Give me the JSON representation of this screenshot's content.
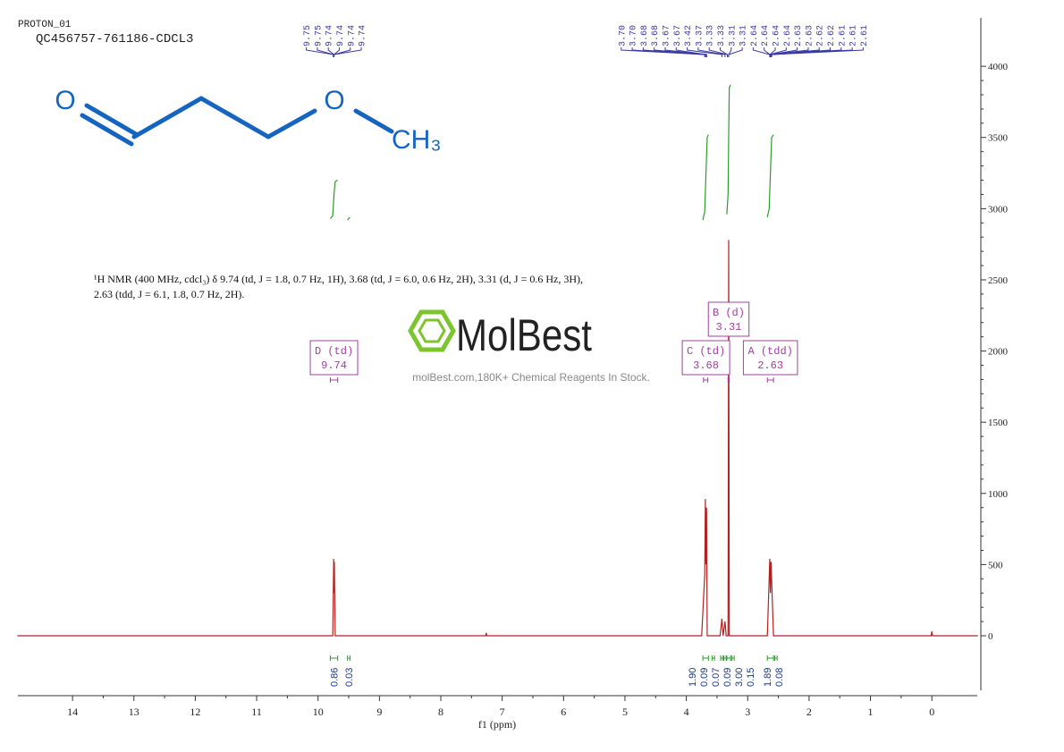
{
  "chart_data": {
    "type": "line",
    "title": "PROTON_01",
    "subtitle": "QC456757-761186-CDCL3",
    "xlabel": "f1 (ppm)",
    "xlim": [
      14.89,
      -0.74
    ],
    "xticks": [
      14,
      13,
      12,
      11,
      10,
      9,
      8,
      7,
      6,
      5,
      4,
      3,
      2,
      1,
      0
    ],
    "ylim": [
      -383,
      4340
    ],
    "yticks": [
      0,
      500,
      1000,
      1500,
      2000,
      2500,
      3000,
      3500,
      4000
    ],
    "spectrum": {
      "color": "#b22222",
      "x": [
        14.9,
        9.8,
        9.76,
        9.745,
        9.74,
        9.735,
        9.72,
        9.5,
        7.27,
        7.26,
        7.25,
        3.75,
        3.7,
        3.69,
        3.68,
        3.67,
        3.66,
        3.45,
        3.42,
        3.4,
        3.37,
        3.35,
        3.32,
        3.31,
        3.3,
        3.25,
        2.68,
        2.64,
        2.63,
        2.62,
        2.58,
        0.01,
        0,
        -0.01,
        -0.75
      ],
      "values": [
        0,
        0,
        0,
        540,
        300,
        520,
        0,
        0,
        0,
        20,
        0,
        0,
        430,
        960,
        500,
        900,
        0,
        0,
        120,
        0,
        100,
        0,
        0,
        2780,
        0,
        0,
        0,
        540,
        300,
        520,
        0,
        0,
        30,
        0,
        0
      ]
    },
    "integral_curves": {
      "color": "#2e9b2e",
      "segments": [
        {
          "x": [
            9.8,
            9.76,
            9.74,
            9.72,
            9.68
          ],
          "values": [
            2930,
            2950,
            3100,
            3190,
            3200
          ]
        },
        {
          "x": [
            9.52,
            9.48
          ],
          "values": [
            2920,
            2940
          ]
        },
        {
          "x": [
            3.73,
            3.7,
            3.68,
            3.66,
            3.64
          ],
          "values": [
            2920,
            2980,
            3250,
            3500,
            3520
          ]
        },
        {
          "x": [
            3.34,
            3.32,
            3.31,
            3.3,
            3.28
          ],
          "values": [
            2960,
            3100,
            3500,
            3850,
            3870
          ]
        },
        {
          "x": [
            2.68,
            2.65,
            2.63,
            2.61,
            2.58
          ],
          "values": [
            2940,
            3000,
            3250,
            3500,
            3520
          ]
        }
      ]
    },
    "peak_labels": {
      "color": "#3a3aa0",
      "peaks": [
        {
          "value": 9.75,
          "label": "9.75"
        },
        {
          "value": 9.75,
          "label": "9.75"
        },
        {
          "value": 9.74,
          "label": "9.74"
        },
        {
          "value": 9.74,
          "label": "9.74"
        },
        {
          "value": 9.74,
          "label": "9.74"
        },
        {
          "value": 9.74,
          "label": "9.74"
        },
        {
          "value": 3.7,
          "label": "3.70"
        },
        {
          "value": 3.7,
          "label": "3.70"
        },
        {
          "value": 3.68,
          "label": "3.68"
        },
        {
          "value": 3.68,
          "label": "3.68"
        },
        {
          "value": 3.67,
          "label": "3.67"
        },
        {
          "value": 3.67,
          "label": "3.67"
        },
        {
          "value": 3.42,
          "label": "3.42"
        },
        {
          "value": 3.37,
          "label": "3.37"
        },
        {
          "value": 3.33,
          "label": "3.33"
        },
        {
          "value": 3.33,
          "label": "3.33"
        },
        {
          "value": 3.31,
          "label": "3.31"
        },
        {
          "value": 3.31,
          "label": "3.31"
        },
        {
          "value": 2.64,
          "label": "2.64"
        },
        {
          "value": 2.64,
          "label": "2.64"
        },
        {
          "value": 2.64,
          "label": "2.64"
        },
        {
          "value": 2.64,
          "label": "2.64"
        },
        {
          "value": 2.63,
          "label": "2.63"
        },
        {
          "value": 2.63,
          "label": "2.63"
        },
        {
          "value": 2.62,
          "label": "2.62"
        },
        {
          "value": 2.62,
          "label": "2.62"
        },
        {
          "value": 2.61,
          "label": "2.61"
        },
        {
          "value": 2.61,
          "label": "2.61"
        },
        {
          "value": 2.61,
          "label": "2.61"
        }
      ]
    },
    "integrals": [
      {
        "range": [
          9.8,
          9.68
        ],
        "value": 0.86,
        "label": "0.86"
      },
      {
        "range": [
          9.52,
          9.48
        ],
        "value": 0.03,
        "label": "0.03"
      },
      {
        "range": [
          3.73,
          3.64
        ],
        "value": 1.9,
        "label": "1.90"
      },
      {
        "range": [
          3.58,
          3.54
        ],
        "value": 0.09,
        "label": "0.09"
      },
      {
        "range": [
          3.44,
          3.4
        ],
        "value": 0.07,
        "label": "0.07"
      },
      {
        "range": [
          3.39,
          3.35
        ],
        "value": 0.09,
        "label": "0.09"
      },
      {
        "range": [
          3.34,
          3.28
        ],
        "value": 3.0,
        "label": "3.00"
      },
      {
        "range": [
          3.26,
          3.22
        ],
        "value": 0.15,
        "label": "0.15"
      },
      {
        "range": [
          2.68,
          2.58
        ],
        "value": 1.89,
        "label": "1.89"
      },
      {
        "range": [
          2.56,
          2.52
        ],
        "value": 0.08,
        "label": "0.08"
      }
    ],
    "multiplets": [
      {
        "name": "D (td)",
        "shift": 9.74,
        "range": [
          9.8,
          9.68
        ]
      },
      {
        "name": "C (td)",
        "shift": 3.68,
        "range": [
          3.72,
          3.65
        ]
      },
      {
        "name": "B (d)",
        "shift": 3.31,
        "range": [
          3.32,
          3.3
        ]
      },
      {
        "name": "A (tdd)",
        "shift": 2.63,
        "range": [
          2.68,
          2.58
        ]
      }
    ],
    "annotation": "¹H NMR (400 MHz, cdcl₃) δ 9.74 (td, J = 1.8, 0.7 Hz, 1H), 3.68 (td, J = 6.0, 0.6 Hz, 2H), 3.31 (d, J = 0.6 Hz, 3H), 2.63 (tdd, J = 6.1, 1.8, 0.7 Hz, 2H)."
  },
  "structure": {
    "atoms": [
      "O",
      "O",
      "CH₃"
    ]
  },
  "watermark": {
    "brand": "MolBest",
    "tagline": "molBest.com,180K+ Chemical Reagents In Stock."
  }
}
